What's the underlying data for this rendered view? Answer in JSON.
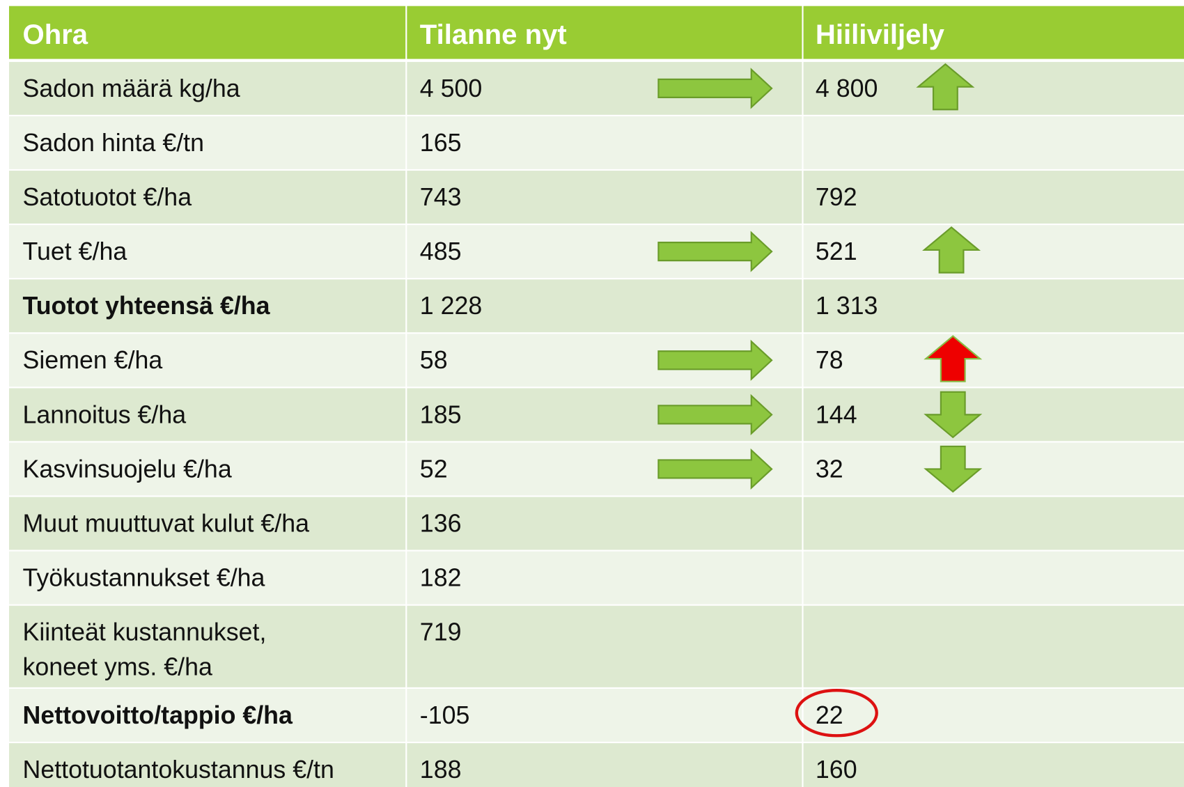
{
  "table": {
    "header": [
      "Ohra",
      "Tilanne nyt",
      "Hiiliviljely"
    ],
    "rows": [
      [
        "Sadon määrä kg/ha",
        "4 500",
        "4 800"
      ],
      [
        "Sadon hinta €/tn",
        "165",
        null
      ],
      [
        "Satotuotot €/ha",
        "743",
        "792"
      ],
      [
        "Tuet €/ha",
        "485",
        "521"
      ],
      [
        "Tuotot yhteensä €/ha",
        "1 228",
        "1 313"
      ],
      [
        "Siemen €/ha",
        "58",
        "78"
      ],
      [
        "Lannoitus €/ha",
        "185",
        "144"
      ],
      [
        "Kasvinsuojelu €/ha",
        "52",
        "32"
      ],
      [
        "Muut muuttuvat kulut €/ha",
        "136",
        null
      ],
      [
        "Työkustannukset €/ha",
        "182",
        null
      ],
      [
        [
          "Kiinteät kustannukset,",
          "koneet yms. €/ha"
        ],
        "719",
        null
      ],
      [
        "Nettovoitto/tappio €/ha",
        "-105",
        "22"
      ],
      [
        "Nettotuotantokustannus €/tn",
        "188",
        "160"
      ]
    ]
  }
}
